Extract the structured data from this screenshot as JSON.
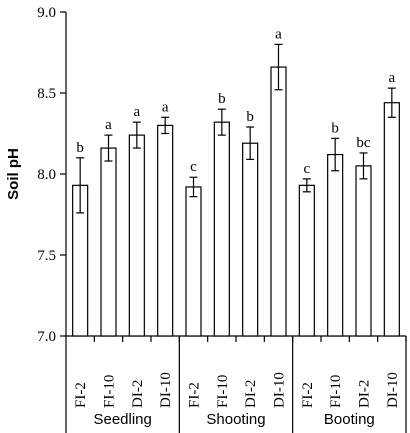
{
  "chart_data": {
    "type": "bar",
    "ylabel": "Soil pH",
    "ylim": [
      7.0,
      9.0
    ],
    "yticks": [
      "7.0",
      "7.5",
      "8.0",
      "8.5",
      "9.0"
    ],
    "yticks_values": [
      7.0,
      7.5,
      8.0,
      8.5,
      9.0
    ],
    "groups": [
      {
        "name": "Seedling",
        "bars": [
          {
            "category": "FI-2",
            "value": 7.93,
            "error": 0.17,
            "sig": "b"
          },
          {
            "category": "FI-10",
            "value": 8.16,
            "error": 0.08,
            "sig": "a"
          },
          {
            "category": "DI-2",
            "value": 8.24,
            "error": 0.08,
            "sig": "a"
          },
          {
            "category": "DI-10",
            "value": 8.3,
            "error": 0.05,
            "sig": "a"
          }
        ]
      },
      {
        "name": "Shooting",
        "bars": [
          {
            "category": "FI-2",
            "value": 7.92,
            "error": 0.06,
            "sig": "c"
          },
          {
            "category": "FI-10",
            "value": 8.32,
            "error": 0.08,
            "sig": "b"
          },
          {
            "category": "DI-2",
            "value": 8.19,
            "error": 0.1,
            "sig": "b"
          },
          {
            "category": "DI-10",
            "value": 8.66,
            "error": 0.14,
            "sig": "a"
          }
        ]
      },
      {
        "name": "Booting",
        "bars": [
          {
            "category": "FI-2",
            "value": 7.93,
            "error": 0.04,
            "sig": "c"
          },
          {
            "category": "FI-10",
            "value": 8.12,
            "error": 0.1,
            "sig": "b"
          },
          {
            "category": "DI-2",
            "value": 8.05,
            "error": 0.08,
            "sig": "bc"
          },
          {
            "category": "DI-10",
            "value": 8.44,
            "error": 0.09,
            "sig": "a"
          }
        ]
      }
    ],
    "colors": {
      "bar_fill": "#ffffff",
      "stroke": "#000000"
    },
    "grid": false,
    "legend": "none"
  }
}
